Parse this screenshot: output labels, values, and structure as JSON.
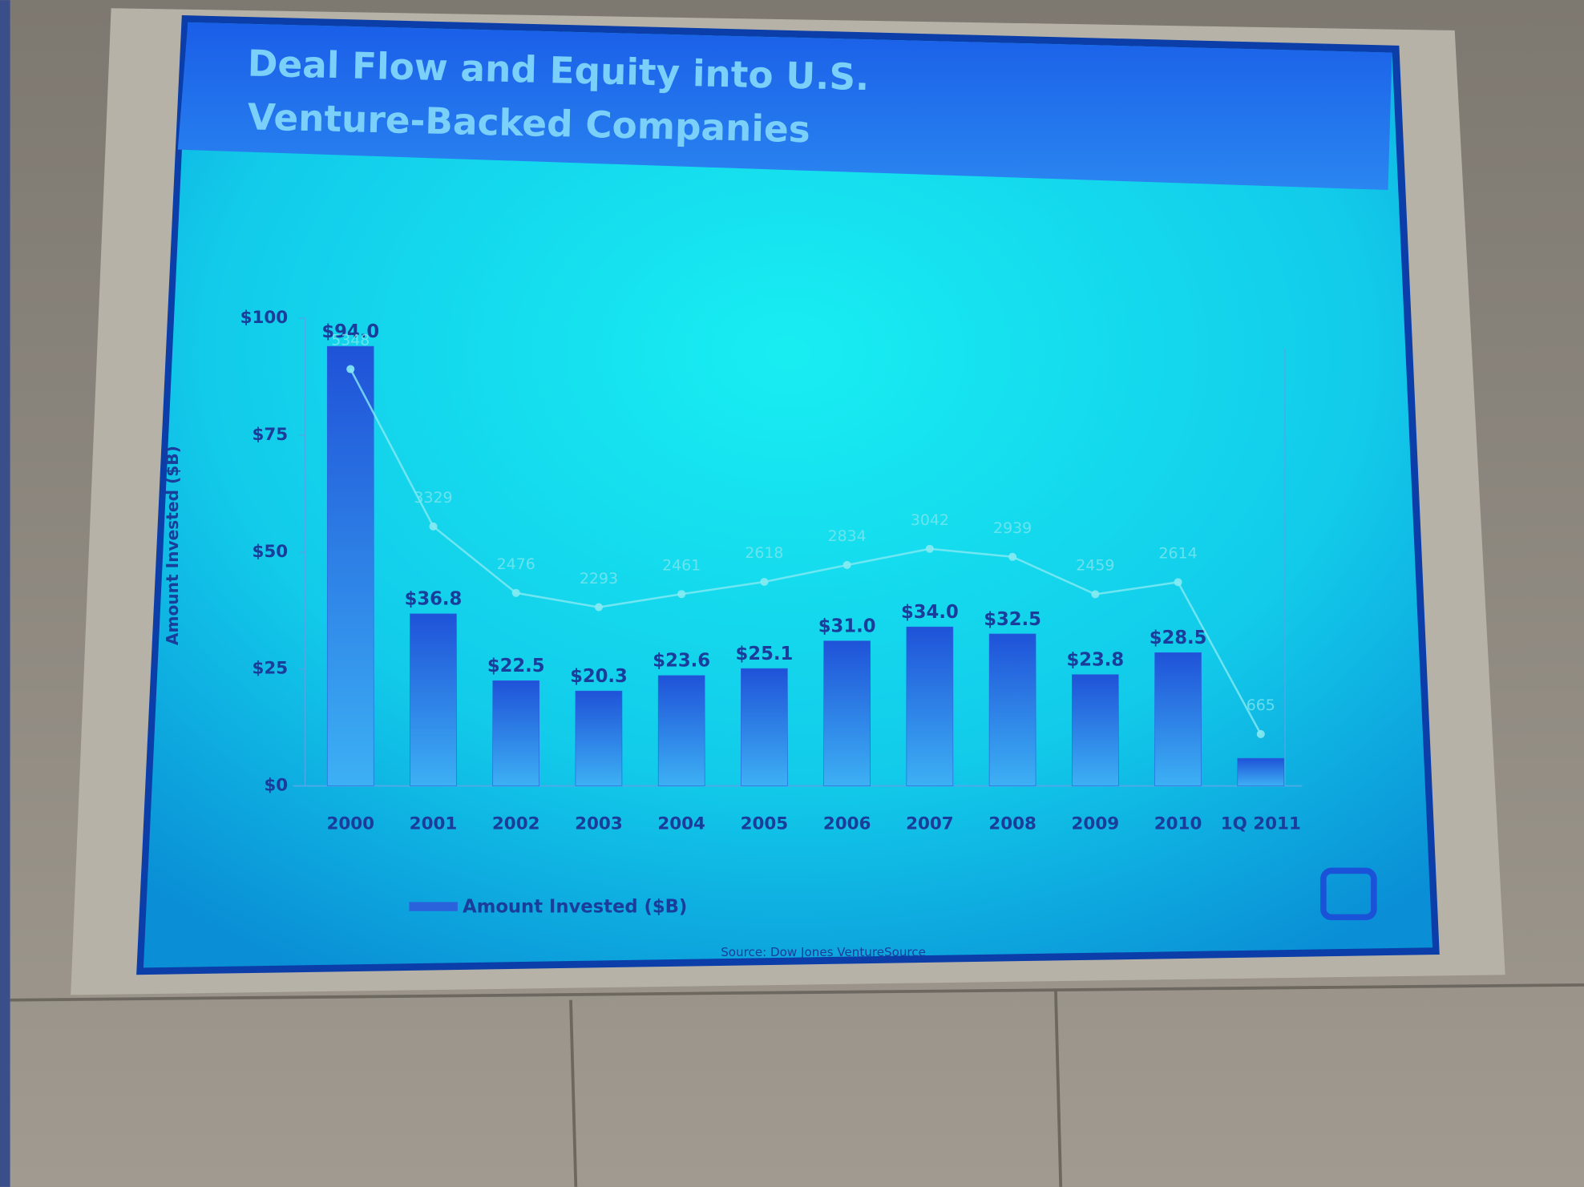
{
  "chart_data": {
    "type": "bar",
    "title": "Deal Flow and Equity into U.S.",
    "subtitle": "Venture-Backed Companies",
    "y_label": "Amount Invested ($B)",
    "source": "Source: Dow Jones VentureSource",
    "categories": [
      "2000",
      "2001",
      "2002",
      "2003",
      "2004",
      "2005",
      "2006",
      "2007",
      "2008",
      "2009",
      "2010",
      "1Q 2011"
    ],
    "series": [
      {
        "name": "Amount Invested ($B)",
        "color": "#2a62dc",
        "values": [
          94.0,
          36.8,
          22.5,
          20.3,
          23.6,
          25.1,
          31.0,
          34.0,
          32.5,
          23.8,
          28.5,
          5.9
        ],
        "value_labels": [
          "$94.0",
          "$36.8",
          "$22.5",
          "$20.3",
          "$23.6",
          "$25.1",
          "$31.0",
          "$34.0",
          "$32.5",
          "$23.8",
          "$28.5",
          null
        ]
      },
      {
        "type": "line",
        "axis": "y2",
        "color": "#86eaf2",
        "values": [
          5348,
          3329,
          2476,
          2293,
          2461,
          2618,
          2834,
          3042,
          2939,
          2459,
          2614,
          665
        ]
      }
    ],
    "ylim": [
      0,
      100
    ],
    "yticks": [
      {
        "value": 0,
        "label": "$0"
      },
      {
        "value": 25,
        "label": "$25"
      },
      {
        "value": 50,
        "label": "$50"
      },
      {
        "value": 75,
        "label": "$75"
      },
      {
        "value": 100,
        "label": "$100"
      }
    ],
    "y2lim": [
      0,
      6000
    ],
    "grid": false
  }
}
